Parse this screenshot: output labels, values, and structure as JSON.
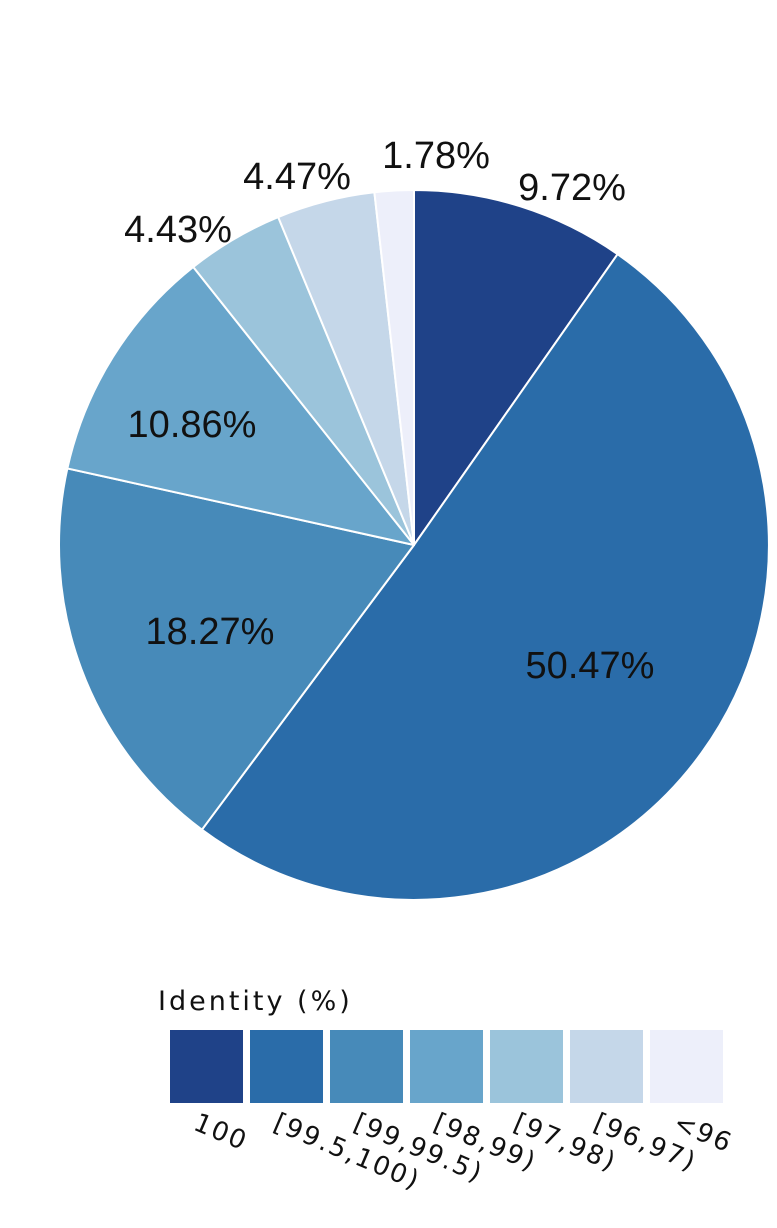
{
  "chart_data": {
    "type": "pie",
    "title": "",
    "start": "top",
    "direction": "clockwise",
    "slices": [
      {
        "category": "100",
        "value": 9.72,
        "label": "9.72%",
        "color": "#1f4288"
      },
      {
        "category": "[99.5,100)",
        "value": 50.47,
        "label": "50.47%",
        "color": "#2a6ca9"
      },
      {
        "category": "[99,99.5)",
        "value": 18.27,
        "label": "18.27%",
        "color": "#478ab9"
      },
      {
        "category": "[98,99)",
        "value": 10.86,
        "label": "10.86%",
        "color": "#68a5cb"
      },
      {
        "category": "[97,98)",
        "value": 4.43,
        "label": "4.43%",
        "color": "#9bc4db"
      },
      {
        "category": "[96,97)",
        "value": 4.47,
        "label": "4.47%",
        "color": "#c5d7e9"
      },
      {
        "category": "<96",
        "value": 1.78,
        "label": "1.78%",
        "color": "#edeffa"
      }
    ],
    "legend": {
      "title": "Identity (%)",
      "placement": "bottom"
    }
  }
}
